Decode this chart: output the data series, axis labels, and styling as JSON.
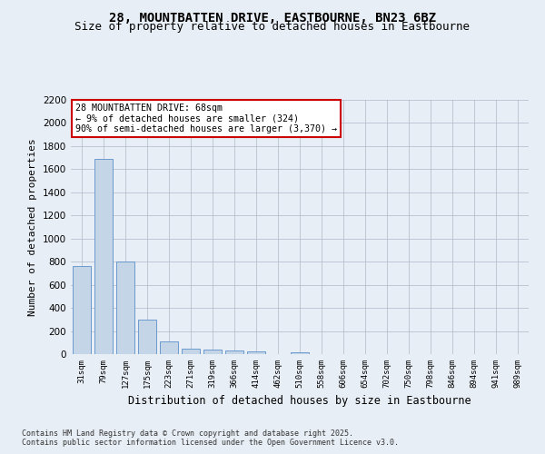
{
  "title_line1": "28, MOUNTBATTEN DRIVE, EASTBOURNE, BN23 6BZ",
  "title_line2": "Size of property relative to detached houses in Eastbourne",
  "xlabel": "Distribution of detached houses by size in Eastbourne",
  "ylabel": "Number of detached properties",
  "categories": [
    "31sqm",
    "79sqm",
    "127sqm",
    "175sqm",
    "223sqm",
    "271sqm",
    "319sqm",
    "366sqm",
    "414sqm",
    "462sqm",
    "510sqm",
    "558sqm",
    "606sqm",
    "654sqm",
    "702sqm",
    "750sqm",
    "798sqm",
    "846sqm",
    "894sqm",
    "941sqm",
    "989sqm"
  ],
  "values": [
    760,
    1690,
    800,
    300,
    110,
    45,
    38,
    35,
    22,
    0,
    18,
    0,
    0,
    0,
    0,
    0,
    0,
    0,
    0,
    0,
    0
  ],
  "bar_color": "#c5d5e8",
  "bar_edge_color": "#5b8fc9",
  "annotation_box_text": "28 MOUNTBATTEN DRIVE: 68sqm\n← 9% of detached houses are smaller (324)\n90% of semi-detached houses are larger (3,370) →",
  "annotation_box_color": "#cc0000",
  "annotation_box_fill": "#ffffff",
  "ylim": [
    0,
    2200
  ],
  "yticks": [
    0,
    200,
    400,
    600,
    800,
    1000,
    1200,
    1400,
    1600,
    1800,
    2000,
    2200
  ],
  "bg_color": "#e8eef5",
  "plot_bg_color": "#e8eef5",
  "footer_line1": "Contains HM Land Registry data © Crown copyright and database right 2025.",
  "footer_line2": "Contains public sector information licensed under the Open Government Licence v3.0.",
  "title_fontsize": 10,
  "subtitle_fontsize": 9,
  "xlabel_fontsize": 8.5,
  "ylabel_fontsize": 8
}
